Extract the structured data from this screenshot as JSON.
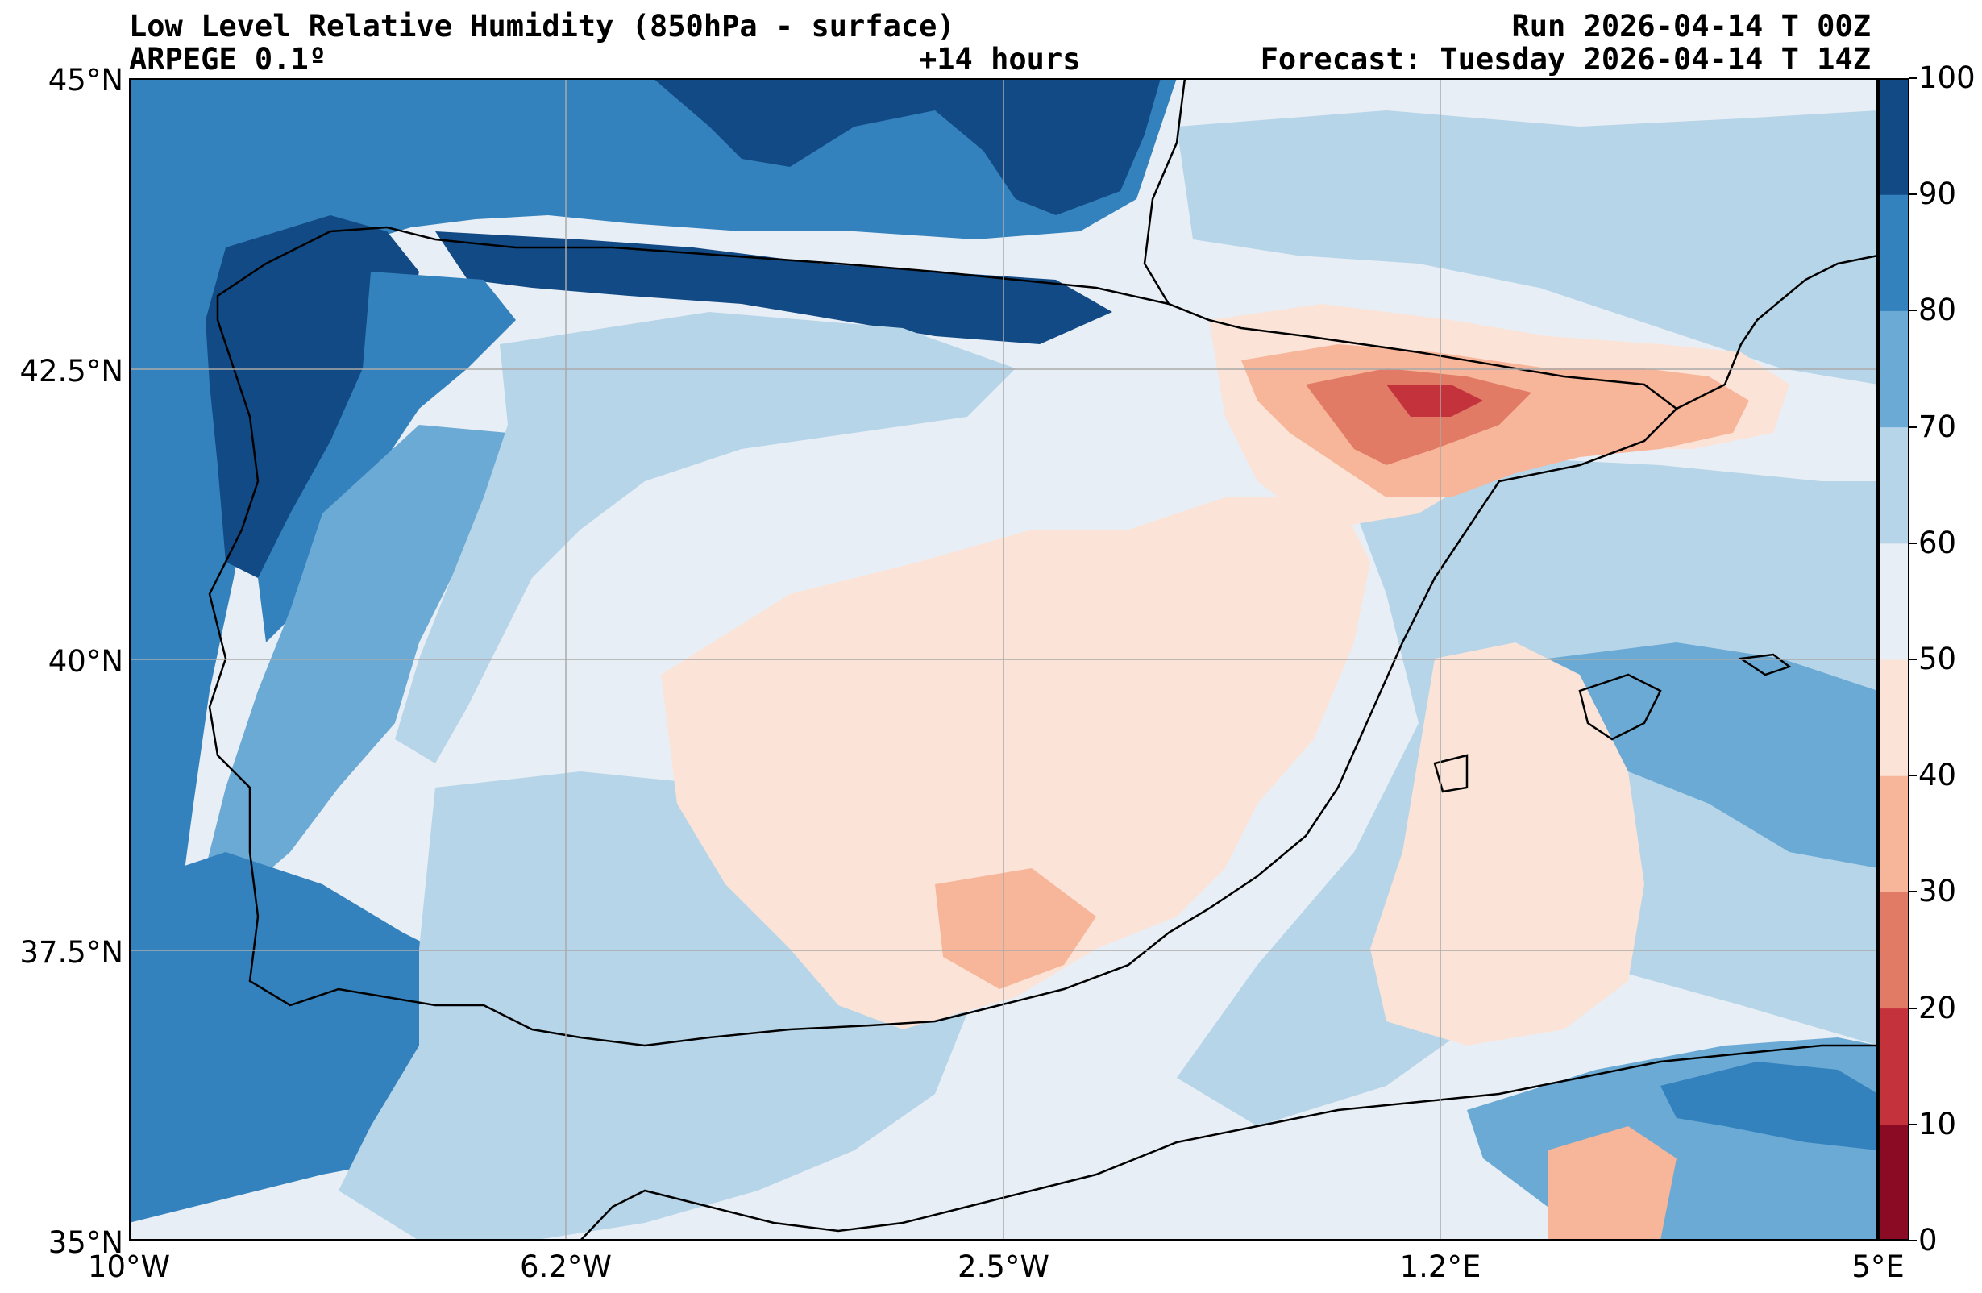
{
  "header": {
    "title": "Low Level Relative Humidity (850hPa - surface)",
    "model": "ARPEGE 0.1º",
    "lead": "+14 hours",
    "run": "Run 2026-04-14 T 00Z",
    "forecast": "Forecast: Tuesday 2026-04-14 T 14Z"
  },
  "axes": {
    "lat_labels": [
      "45°N",
      "42.5°N",
      "40°N",
      "37.5°N",
      "35°N"
    ],
    "lon_labels": [
      "10°W",
      "6.2°W",
      "2.5°W",
      "1.2°E",
      "5°E"
    ],
    "lat_values": [
      45,
      42.5,
      40,
      37.5,
      35
    ],
    "lon_values": [
      -10,
      -6.25,
      -2.5,
      1.25,
      5
    ],
    "lat_range": [
      35,
      45
    ],
    "lon_range": [
      -10,
      5
    ],
    "grid": true
  },
  "colorbar": {
    "ticks": [
      "0",
      "10",
      "20",
      "30",
      "40",
      "50",
      "60",
      "70",
      "80",
      "90",
      "100"
    ],
    "colors": [
      "#8b0a24",
      "#c4323b",
      "#e27b66",
      "#f7b599",
      "#fbe4d7",
      "#e8eef5",
      "#b6d5e8",
      "#6aaad4",
      "#3482bd",
      "#124a85"
    ]
  }
}
